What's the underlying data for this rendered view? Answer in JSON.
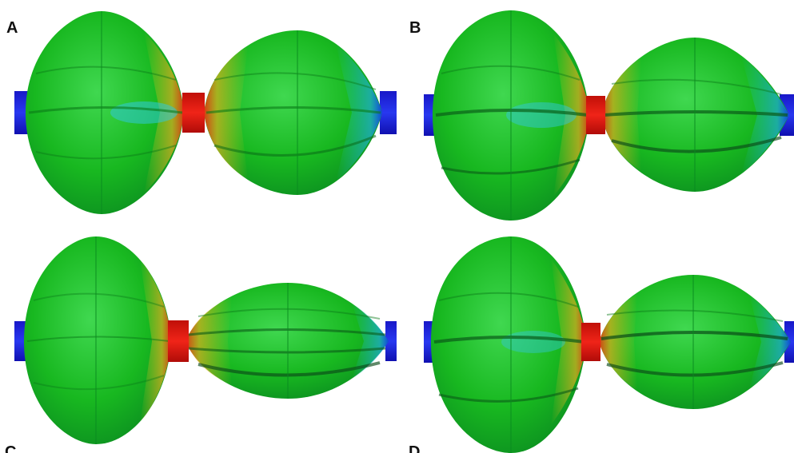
{
  "figure": {
    "panels": [
      {
        "label": "A"
      },
      {
        "label": "B"
      },
      {
        "label": "C"
      },
      {
        "label": "D"
      }
    ],
    "colors": {
      "background": "#ffffff",
      "surface_green": "#20c020",
      "hot_red": "#e81810",
      "cold_blue": "#1020e0",
      "warm_yellow": "#d8c020",
      "cool_cyan": "#20c0d0"
    }
  }
}
